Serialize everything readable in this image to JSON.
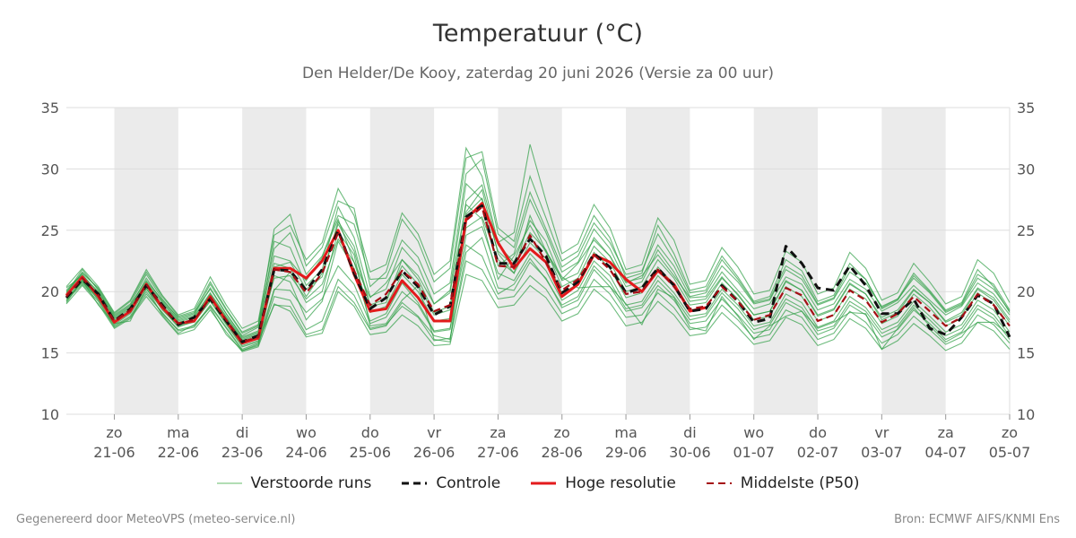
{
  "title": "Temperatuur (°C)",
  "subtitle": "Den Helder/De Kooy, zaterdag 20 juni 2026 (Versie za 00 uur)",
  "footer_left": "Gegenereerd door MeteoVPS (meteo-service.nl)",
  "footer_right": "Bron: ECMWF AIFS/KNMI Ens",
  "legend": [
    {
      "label": "Verstoorde runs",
      "color": "#66bb6a",
      "style": "thin"
    },
    {
      "label": "Controle",
      "color": "#111111",
      "style": "dashed"
    },
    {
      "label": "Hoge resolutie",
      "color": "#e31a1c",
      "style": "solid"
    },
    {
      "label": "Middelste (P50)",
      "color": "#a50f15",
      "style": "dashed"
    }
  ],
  "colors": {
    "ensemble": "#2e9e44",
    "control": "#111111",
    "hires": "#e31a1c",
    "median": "#a50f15",
    "weekend_band": "#ebebeb",
    "grid": "#dddddd"
  },
  "chart_data": {
    "type": "line",
    "title": "Temperatuur (°C)",
    "subtitle": "Den Helder/De Kooy, zaterdag 20 juni 2026 (Versie za 00 uur)",
    "ylim": [
      10,
      35
    ],
    "yticks": [
      10,
      15,
      20,
      25,
      30,
      35
    ],
    "xlim": [
      -0.75,
      14
    ],
    "x_ticks": [
      {
        "day": "zo",
        "date": "21-06"
      },
      {
        "day": "ma",
        "date": "22-06"
      },
      {
        "day": "di",
        "date": "23-06"
      },
      {
        "day": "wo",
        "date": "24-06"
      },
      {
        "day": "do",
        "date": "25-06"
      },
      {
        "day": "vr",
        "date": "26-06"
      },
      {
        "day": "za",
        "date": "27-06"
      },
      {
        "day": "zo",
        "date": "28-06"
      },
      {
        "day": "ma",
        "date": "29-06"
      },
      {
        "day": "di",
        "date": "30-06"
      },
      {
        "day": "wo",
        "date": "01-07"
      },
      {
        "day": "do",
        "date": "02-07"
      },
      {
        "day": "vr",
        "date": "03-07"
      },
      {
        "day": "za",
        "date": "04-07"
      },
      {
        "day": "zo",
        "date": "05-07"
      }
    ],
    "shaded_days": [
      0,
      2,
      4,
      6,
      8,
      10,
      12
    ],
    "legend_position": "bottom",
    "grid": true,
    "series": [
      {
        "name": "Hoge resolutie",
        "x": [
          -0.75,
          -0.5,
          -0.25,
          0,
          0.25,
          0.5,
          0.75,
          1,
          1.25,
          1.5,
          1.75,
          2,
          2.25,
          2.5,
          2.75,
          3,
          3.25,
          3.5,
          3.75,
          4,
          4.25,
          4.5,
          4.75,
          5,
          5.25,
          5.5,
          5.75,
          6,
          6.25,
          6.5,
          6.75,
          7,
          7.25,
          7.5,
          7.75,
          8,
          8.25,
          8.5,
          8.75,
          9,
          9.25
        ],
        "values": [
          19.7,
          21.2,
          19.6,
          17.5,
          18.4,
          20.6,
          18.7,
          17.4,
          17.6,
          19.6,
          17.6,
          15.8,
          16.2,
          21.9,
          21.9,
          21.1,
          22.5,
          25.0,
          21.4,
          18.4,
          18.6,
          20.9,
          19.5,
          17.6,
          17.6,
          25.9,
          27.2,
          24.0,
          21.9,
          23.5,
          22.4,
          19.6,
          20.6,
          23.0,
          22.4,
          21.0,
          20.0,
          21.7,
          20.6,
          18.4,
          18.7
        ]
      },
      {
        "name": "Controle",
        "x": [
          -0.75,
          -0.5,
          -0.25,
          0,
          0.25,
          0.5,
          0.75,
          1,
          1.25,
          1.5,
          1.75,
          2,
          2.25,
          2.5,
          2.75,
          3,
          3.25,
          3.5,
          3.75,
          4,
          4.25,
          4.5,
          4.75,
          5,
          5.25,
          5.5,
          5.75,
          6,
          6.25,
          6.5,
          6.75,
          7,
          7.25,
          7.5,
          7.75,
          8,
          8.25,
          8.5,
          8.75,
          9,
          9.25,
          9.5,
          9.75,
          10,
          10.25,
          10.5,
          10.75,
          11,
          11.25,
          11.5,
          11.75,
          12,
          12.25,
          12.5,
          12.75,
          13,
          13.25,
          13.5,
          13.75,
          14
        ],
        "values": [
          19.5,
          21.0,
          19.8,
          17.6,
          18.6,
          20.5,
          18.9,
          17.3,
          17.9,
          19.4,
          17.6,
          15.9,
          16.4,
          21.8,
          21.7,
          20.1,
          21.8,
          25.0,
          21.5,
          18.6,
          19.5,
          21.7,
          20.4,
          18.1,
          18.8,
          26.1,
          27.0,
          22.3,
          22.3,
          24.3,
          22.9,
          19.9,
          20.8,
          23.1,
          22.0,
          19.9,
          20.3,
          21.9,
          20.5,
          18.4,
          18.6,
          20.5,
          19.2,
          17.5,
          17.8,
          23.7,
          22.3,
          20.3,
          20.1,
          22.1,
          20.5,
          18.2,
          18.2,
          19.4,
          17.0,
          16.5,
          17.9,
          19.7,
          19.0,
          16.3
        ]
      },
      {
        "name": "Middelste (P50)",
        "x": [
          -0.75,
          -0.5,
          -0.25,
          0,
          0.25,
          0.5,
          0.75,
          1,
          1.25,
          1.5,
          1.75,
          2,
          2.25,
          2.5,
          2.75,
          3,
          3.25,
          3.5,
          3.75,
          4,
          4.25,
          4.5,
          4.75,
          5,
          5.25,
          5.5,
          5.75,
          6,
          6.25,
          6.5,
          6.75,
          7,
          7.25,
          7.5,
          7.75,
          8,
          8.25,
          8.5,
          8.75,
          9,
          9.25,
          9.5,
          9.75,
          10,
          10.25,
          10.5,
          10.75,
          11,
          11.25,
          11.5,
          11.75,
          12,
          12.25,
          12.5,
          12.75,
          13,
          13.25,
          13.5,
          13.75,
          14
        ],
        "values": [
          19.6,
          21.1,
          19.7,
          17.6,
          18.5,
          20.6,
          18.8,
          17.4,
          17.7,
          19.5,
          17.7,
          15.9,
          16.3,
          21.8,
          21.6,
          19.9,
          21.5,
          24.8,
          21.7,
          18.9,
          19.8,
          21.7,
          20.6,
          18.4,
          18.9,
          25.8,
          26.9,
          22.1,
          22.0,
          24.6,
          22.4,
          20.1,
          21.0,
          23.0,
          21.8,
          19.8,
          20.0,
          21.8,
          20.4,
          18.6,
          18.8,
          20.4,
          19.2,
          17.7,
          18.1,
          20.3,
          19.7,
          17.6,
          18.1,
          20.1,
          19.3,
          17.5,
          18.2,
          19.6,
          18.4,
          17.2,
          17.9,
          19.8,
          18.9,
          17.2
        ]
      }
    ],
    "ensemble": [
      [
        19.1,
        20.9,
        18.9,
        17.4,
        17.6,
        20.3,
        18.1,
        16.6,
        17.3,
        18.7,
        16.5,
        15.2,
        15.6,
        20.1,
        21.6,
        19.1,
        20.0,
        24.9,
        23.0,
        17.2,
        17.4,
        19.3,
        20.5,
        16.1,
        15.9,
        26.5,
        28.3,
        23.1,
        21.5,
        26.2,
        23.3,
        21.2,
        20.3,
        20.4,
        20.4,
        19.0,
        17.3,
        20.2,
        19.5,
        17.1,
        16.8,
        19.6,
        18.0,
        16.1,
        17.2,
        18.0,
        18.4,
        17.0,
        17.5,
        18.3,
        18.2,
        15.3,
        17.0,
        18.7,
        17.2,
        15.9,
        16.6,
        17.5,
        17.5,
        16.4
      ],
      [
        20.3,
        21.3,
        20.0,
        18.0,
        18.9,
        20.9,
        19.3,
        17.9,
        18.3,
        20.2,
        18.2,
        16.4,
        17.1,
        22.9,
        22.5,
        20.9,
        22.8,
        25.9,
        22.4,
        19.5,
        20.7,
        22.6,
        21.3,
        19.0,
        19.9,
        27.1,
        25.9,
        21.0,
        22.9,
        25.4,
        23.2,
        21.0,
        22.3,
        24.2,
        22.9,
        20.7,
        21.3,
        23.0,
        21.3,
        19.5,
        19.6,
        21.6,
        20.1,
        18.6,
        19.0,
        21.2,
        20.6,
        18.5,
        19.0,
        21.0,
        20.2,
        18.4,
        19.1,
        20.5,
        19.3,
        18.1,
        18.8,
        20.7,
        19.8,
        18.1
      ],
      [
        19.4,
        20.8,
        19.5,
        17.3,
        18.2,
        20.2,
        18.6,
        17.1,
        17.6,
        19.3,
        17.4,
        15.6,
        16.0,
        18.9,
        18.8,
        16.5,
        16.9,
        20.4,
        19.1,
        16.9,
        17.2,
        19.1,
        18.0,
        16.4,
        16.1,
        23.2,
        24.4,
        20.3,
        20.1,
        22.4,
        21.1,
        18.7,
        19.3,
        21.8,
        20.4,
        18.4,
        18.7,
        20.5,
        19.3,
        17.4,
        17.6,
        19.4,
        18.1,
        16.6,
        16.9,
        19.1,
        18.4,
        16.5,
        17.0,
        18.9,
        18.1,
        16.3,
        16.9,
        18.5,
        17.4,
        16.1,
        16.7,
        18.6,
        17.8,
        16.1
      ],
      [
        19.8,
        21.6,
        20.2,
        18.1,
        19.0,
        21.4,
        19.4,
        17.8,
        18.2,
        20.6,
        18.5,
        16.6,
        17.2,
        25.1,
        26.3,
        22.1,
        23.6,
        27.4,
        26.8,
        20.4,
        21.6,
        25.9,
        24.1,
        20.8,
        21.9,
        30.9,
        31.4,
        25.2,
        24.1,
        29.4,
        26.0,
        22.5,
        23.3,
        26.2,
        24.4,
        21.1,
        21.5,
        25.4,
        23.1,
        20.1,
        20.4,
        22.9,
        21.2,
        19.2,
        19.6,
        22.6,
        21.7,
        19.2,
        19.7,
        22.3,
        21.0,
        18.7,
        19.4,
        21.5,
        20.1,
        18.5,
        19.1,
        21.8,
        20.4,
        18.3
      ],
      [
        19.2,
        21.0,
        19.3,
        17.2,
        18.0,
        20.0,
        18.2,
        16.9,
        17.2,
        18.9,
        17.1,
        15.3,
        15.8,
        21.3,
        20.8,
        17.7,
        19.2,
        24.1,
        21.9,
        17.6,
        18.2,
        20.7,
        19.1,
        16.8,
        17.0,
        23.8,
        22.9,
        19.8,
        20.6,
        22.7,
        21.0,
        18.9,
        19.6,
        22.1,
        20.8,
        18.6,
        18.9,
        20.9,
        19.6,
        17.7,
        18.0,
        19.9,
        18.6,
        16.9,
        17.3,
        19.4,
        18.7,
        16.8,
        17.2,
        19.2,
        18.4,
        16.6,
        17.2,
        18.9,
        17.7,
        16.4,
        17.0,
        18.9,
        18.1,
        16.4
      ],
      [
        20.0,
        21.4,
        19.9,
        17.8,
        18.7,
        20.8,
        19.1,
        17.6,
        18.0,
        19.9,
        18.0,
        16.2,
        16.7,
        24.1,
        23.6,
        20.5,
        21.8,
        26.9,
        24.4,
        19.6,
        20.2,
        23.6,
        22.1,
        19.0,
        20.1,
        28.8,
        27.5,
        22.1,
        23.1,
        27.5,
        24.8,
        21.6,
        22.4,
        25.1,
        23.5,
        20.8,
        21.1,
        23.8,
        22.1,
        19.6,
        19.9,
        22.1,
        20.8,
        19.0,
        19.3,
        21.8,
        21.0,
        18.9,
        19.4,
        21.6,
        20.7,
        18.8,
        19.4,
        21.1,
        19.9,
        18.3,
        18.9,
        21.1,
        20.2,
        18.4
      ],
      [
        19.5,
        20.7,
        19.4,
        17.5,
        18.3,
        20.4,
        18.5,
        17.2,
        17.5,
        19.2,
        17.3,
        15.5,
        15.9,
        20.2,
        20.1,
        18.3,
        19.4,
        22.1,
        20.6,
        17.4,
        17.9,
        20.0,
        18.9,
        16.7,
        16.9,
        24.6,
        25.3,
        21.5,
        20.9,
        23.1,
        21.7,
        19.3,
        20.1,
        22.5,
        21.3,
        18.9,
        19.2,
        21.3,
        19.9,
        18.0,
        18.2,
        20.2,
        18.9,
        17.2,
        17.5,
        19.8,
        19.1,
        17.1,
        17.6,
        19.6,
        18.7,
        16.9,
        17.5,
        19.2,
        18.0,
        16.7,
        17.3,
        19.3,
        18.5,
        16.7
      ],
      [
        19.9,
        21.8,
        20.1,
        17.9,
        18.8,
        21.1,
        19.2,
        17.7,
        18.1,
        20.3,
        18.2,
        16.3,
        16.8,
        22.3,
        21.9,
        19.6,
        21.5,
        25.5,
        23.3,
        18.8,
        19.1,
        22.6,
        21.0,
        18.3,
        18.8,
        27.4,
        28.7,
        23.8,
        22.4,
        25.8,
        24.1,
        20.9,
        21.5,
        24.4,
        22.9,
        20.4,
        20.8,
        23.4,
        21.6,
        19.2,
        19.4,
        21.2,
        19.7,
        18.1,
        18.4,
        20.8,
        20.1,
        18.1,
        18.6,
        20.7,
        19.8,
        17.9,
        18.5,
        20.2,
        19.1,
        17.6,
        18.3,
        20.3,
        19.5,
        17.7
      ],
      [
        19.3,
        20.6,
        19.2,
        17.1,
        17.9,
        19.8,
        18.3,
        16.8,
        17.1,
        18.8,
        17.0,
        15.2,
        15.7,
        19.6,
        19.3,
        16.9,
        17.6,
        21.0,
        19.7,
        17.0,
        17.3,
        18.8,
        17.9,
        16.0,
        16.2,
        22.5,
        21.8,
        19.4,
        19.6,
        21.3,
        20.2,
        18.2,
        18.8,
        21.0,
        19.8,
        17.9,
        18.1,
        19.9,
        18.7,
        16.9,
        17.1,
        18.9,
        17.7,
        16.2,
        16.5,
        18.5,
        17.9,
        16.1,
        16.6,
        18.4,
        17.5,
        15.8,
        16.5,
        18.0,
        16.9,
        15.7,
        16.3,
        18.1,
        17.3,
        15.8
      ],
      [
        20.1,
        21.5,
        20.3,
        18.2,
        19.2,
        21.6,
        19.6,
        18.0,
        18.4,
        20.8,
        18.6,
        16.7,
        17.3,
        23.5,
        24.8,
        21.4,
        22.9,
        26.2,
        25.5,
        21.0,
        21.1,
        24.2,
        22.8,
        19.8,
        20.7,
        29.6,
        30.8,
        24.7,
        23.6,
        28.1,
        25.1,
        22.0,
        22.9,
        25.6,
        24.0,
        21.4,
        21.7,
        24.7,
        22.6,
        19.9,
        20.1,
        22.6,
        21.0,
        19.1,
        19.4,
        22.1,
        21.3,
        19.0,
        19.5,
        22.0,
        21.0,
        18.6,
        19.3,
        21.3,
        20.0,
        18.4,
        19.0,
        21.4,
        20.6,
        18.5
      ],
      [
        19.6,
        20.9,
        19.6,
        17.6,
        18.4,
        20.5,
        18.7,
        17.3,
        17.7,
        19.7,
        17.8,
        16.0,
        16.5,
        21.1,
        21.3,
        19.4,
        20.6,
        24.3,
        22.4,
        18.3,
        18.8,
        21.4,
        20.0,
        17.6,
        17.8,
        25.2,
        26.1,
        22.6,
        21.5,
        24.0,
        22.7,
        19.9,
        20.6,
        23.2,
        21.9,
        19.5,
        19.9,
        22.0,
        20.6,
        18.5,
        18.7,
        20.7,
        19.4,
        17.7,
        18.0,
        20.4,
        19.6,
        17.6,
        18.1,
        20.2,
        19.4,
        17.4,
        18.0,
        19.8,
        18.7,
        17.2,
        17.8,
        19.9,
        19.0,
        17.2
      ],
      [
        19.0,
        20.5,
        19.0,
        17.0,
        17.8,
        19.6,
        18.0,
        16.5,
        16.9,
        18.5,
        16.7,
        15.1,
        15.5,
        19.0,
        18.4,
        16.3,
        16.6,
        20.0,
        18.8,
        16.5,
        16.7,
        18.1,
        17.2,
        15.6,
        15.7,
        21.4,
        20.9,
        18.7,
        18.9,
        20.5,
        19.5,
        17.6,
        18.2,
        20.2,
        19.1,
        17.2,
        17.5,
        19.2,
        18.1,
        16.4,
        16.6,
        18.3,
        17.1,
        15.7,
        16.0,
        17.9,
        17.3,
        15.6,
        16.1,
        17.8,
        17.0,
        15.3,
        16.0,
        17.4,
        16.4,
        15.2,
        15.8,
        17.5,
        16.8,
        15.3
      ],
      [
        20.4,
        21.9,
        20.4,
        18.3,
        19.3,
        21.8,
        19.7,
        18.1,
        18.6,
        21.2,
        18.9,
        17.0,
        17.6,
        24.6,
        25.4,
        22.6,
        24.0,
        28.4,
        26.2,
        21.6,
        22.2,
        26.4,
        24.7,
        21.4,
        22.5,
        31.7,
        29.4,
        24.0,
        24.8,
        32.0,
        27.4,
        23.1,
        23.9,
        27.1,
        25.2,
        21.8,
        22.2,
        26.0,
        24.2,
        20.6,
        20.9,
        23.6,
        22.0,
        19.8,
        20.1,
        23.3,
        22.4,
        19.8,
        20.3,
        23.2,
        21.9,
        19.3,
        19.9,
        22.3,
        20.8,
        19.0,
        19.6,
        22.6,
        21.5,
        19.1
      ],
      [
        19.7,
        21.2,
        19.8,
        17.7,
        18.6,
        20.7,
        18.9,
        17.5,
        17.9,
        19.8,
        17.9,
        16.1,
        16.6,
        22.0,
        22.4,
        20.2,
        21.2,
        25.7,
        23.7,
        18.9,
        19.4,
        22.1,
        20.6,
        18.1,
        18.5,
        26.3,
        27.6,
        23.3,
        22.1,
        24.8,
        23.4,
        20.4,
        21.1,
        23.7,
        22.4,
        20.0,
        20.4,
        22.6,
        21.1,
        18.9,
        19.1,
        21.1,
        19.8,
        18.1,
        18.4,
        20.9,
        20.1,
        18.0,
        18.5,
        20.6,
        19.8,
        17.7,
        18.3,
        20.1,
        19.1,
        17.5,
        18.1,
        20.2,
        19.3,
        17.5
      ]
    ]
  }
}
